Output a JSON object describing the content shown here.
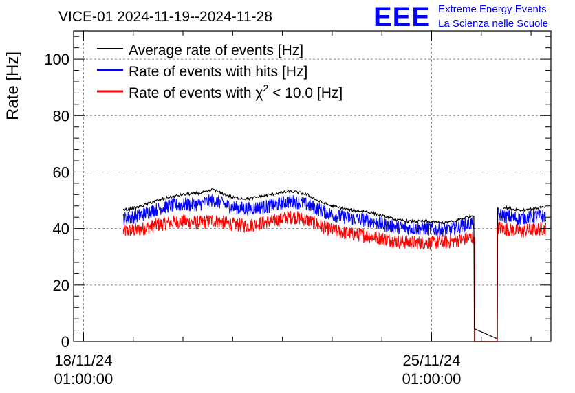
{
  "header": {
    "title": "VICE-01 2024-11-19--2024-11-28",
    "logo_mark": "EEE",
    "logo_line1": "Extreme Energy Events",
    "logo_line2": "La Scienza nelle Scuole"
  },
  "chart_data": {
    "type": "line",
    "title": "VICE-01 2024-11-19--2024-11-28",
    "xlabel": "",
    "ylabel": "Rate [Hz]",
    "x_unit": "days since 18/11/24 01:00:00",
    "xlim": [
      -0.2,
      9.4
    ],
    "ylim": [
      0,
      110
    ],
    "yticks": [
      0,
      20,
      40,
      60,
      80,
      100
    ],
    "xticks": [
      {
        "x": 0,
        "date": "18/11/24",
        "time": "01:00:00"
      },
      {
        "x": 7,
        "date": "25/11/24",
        "time": "01:00:00"
      }
    ],
    "grid": true,
    "legend_position": "top-left",
    "legend": [
      {
        "label": "Average rate of events [Hz]",
        "color": "#000000"
      },
      {
        "label": "Rate of events with hits [Hz]",
        "color": "#0000ff"
      },
      {
        "label_prefix": "Rate of events with χ",
        "label_sup": "2",
        "label_suffix": " < 10.0 [Hz]",
        "color": "#ff0000"
      }
    ],
    "series": [
      {
        "name": "Average rate of events [Hz]",
        "color": "#000000",
        "noise": 0.5,
        "x": [
          0.8,
          1.1,
          1.4,
          1.7,
          2.0,
          2.3,
          2.5,
          2.6,
          2.7,
          2.85,
          3.0,
          3.3,
          3.6,
          3.9,
          4.1,
          4.25,
          4.5,
          4.7,
          4.9,
          5.1,
          5.4,
          5.7,
          6.0,
          6.3,
          6.6,
          6.9,
          7.2,
          7.45,
          7.6,
          7.8,
          7.85,
          7.86,
          8.32,
          8.33,
          8.45,
          8.6,
          8.8,
          9.0,
          9.2,
          9.3
        ],
        "y": [
          46.5,
          47.5,
          49.5,
          51,
          52,
          52.5,
          53,
          54,
          53,
          52,
          51,
          50.5,
          51.5,
          52.5,
          53,
          53,
          52,
          50,
          48.5,
          47.5,
          46.5,
          46,
          44.5,
          43,
          42.5,
          42.5,
          42,
          42.5,
          43.5,
          44.5,
          44.5,
          4.5,
          1,
          47.5,
          47.5,
          47,
          46.5,
          47,
          47.5,
          47.5
        ]
      },
      {
        "name": "Rate of events with hits [Hz]",
        "color": "#0000ff",
        "noise": 2.5,
        "x": [
          0.8,
          1.1,
          1.4,
          1.7,
          2.0,
          2.3,
          2.5,
          2.6,
          2.7,
          2.85,
          3.0,
          3.3,
          3.6,
          3.9,
          4.1,
          4.25,
          4.5,
          4.7,
          4.9,
          5.1,
          5.4,
          5.7,
          6.0,
          6.3,
          6.6,
          6.9,
          7.2,
          7.45,
          7.6,
          7.85
        ],
        "y": [
          43.5,
          44.5,
          46.5,
          48,
          48.5,
          48.5,
          49.5,
          50,
          49.5,
          48.5,
          47.5,
          47,
          47.5,
          48.5,
          49.5,
          49.5,
          48.5,
          47,
          45.5,
          44.5,
          43.5,
          43,
          41.5,
          40.5,
          40,
          40,
          39.5,
          40,
          41,
          42
        ],
        "x2": [
          8.33,
          8.45,
          8.6,
          8.8,
          9.0,
          9.2,
          9.3
        ],
        "y2": [
          45,
          44.5,
          44,
          43.5,
          44,
          44.5,
          44.5
        ]
      },
      {
        "name": "Rate of events with χ² < 10.0 [Hz]",
        "color": "#ff0000",
        "noise": 2.5,
        "x": [
          0.8,
          1.1,
          1.4,
          1.7,
          2.0,
          2.3,
          2.5,
          2.6,
          2.7,
          2.85,
          3.0,
          3.3,
          3.6,
          3.9,
          4.1,
          4.25,
          4.5,
          4.7,
          4.9,
          5.1,
          5.4,
          5.7,
          6.0,
          6.3,
          6.6,
          6.9,
          7.2,
          7.45,
          7.6,
          7.85
        ],
        "y": [
          39,
          39.5,
          41,
          42,
          42.5,
          42,
          42.5,
          43,
          42.5,
          42,
          41.5,
          41,
          42,
          43,
          44,
          44,
          43,
          41.5,
          40,
          39,
          38,
          37.5,
          36.5,
          35.5,
          35,
          35,
          35,
          35.5,
          36,
          37
        ],
        "x2": [
          8.33,
          8.45,
          8.6,
          8.8,
          9.0,
          9.2,
          9.3
        ],
        "y2": [
          40.5,
          40,
          39.5,
          39,
          39.5,
          40,
          40
        ],
        "gap_rect": {
          "x_start": 7.86,
          "x_end": 8.32,
          "y_bottom": 0,
          "y_top": 37
        }
      }
    ]
  }
}
